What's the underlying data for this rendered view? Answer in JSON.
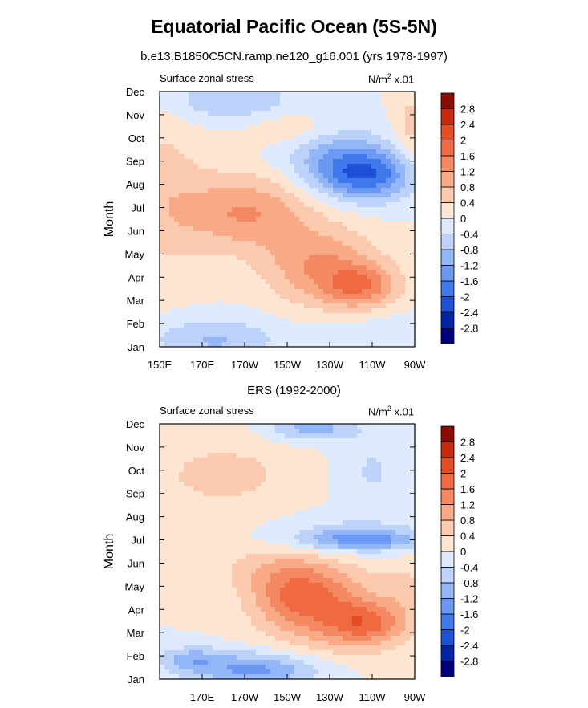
{
  "title": "Equatorial Pacific Ocean (5S-5N)",
  "subtitle": "b.e13.B1850C5CN.ramp.ne120_g16.001 (yrs 1978-1997)",
  "colors": [
    "#00007f",
    "#0424a8",
    "#1f4fd6",
    "#3f78ea",
    "#6a98f2",
    "#93b6f6",
    "#bcd2f9",
    "#dde9fc",
    "#fde5d2",
    "#fbc9ad",
    "#f8a986",
    "#f48862",
    "#ef6a40",
    "#e44c24",
    "#c8280c",
    "#8c0a00"
  ],
  "chart_data": [
    {
      "type": "heatmap",
      "panel_left": "Surface zonal stress",
      "panel_right_main": "N/m",
      "panel_right_sup": "2",
      "panel_right_tail": " x.01",
      "xlabel": "",
      "ylabel": "Month",
      "x_ticklabels": [
        "150E",
        "170E",
        "170W",
        "150W",
        "130W",
        "110W",
        "90W"
      ],
      "y_ticklabels": [
        "Jan",
        "Feb",
        "Mar",
        "Apr",
        "May",
        "Jun",
        "Jul",
        "Aug",
        "Sep",
        "Oct",
        "Nov",
        "Dec"
      ],
      "xlim": [
        150,
        270
      ],
      "colorbar_levels": [
        "-2.8",
        "-2.4",
        "-2",
        "-1.6",
        "-1.2",
        "-0.8",
        "-0.4",
        "0",
        "0.4",
        "0.8",
        "1.2",
        "1.6",
        "2",
        "2.4",
        "2.8"
      ],
      "features": [
        {
          "lon": 150,
          "mon": 7.6,
          "amp": 0.55,
          "slon": 22,
          "smon": 4.0
        },
        {
          "lon": 190,
          "mon": 6.8,
          "amp": 1.2,
          "slon": 30,
          "smon": 1.6
        },
        {
          "lon": 225,
          "mon": 4.5,
          "amp": 1.15,
          "slon": 26,
          "smon": 1.7
        },
        {
          "lon": 245,
          "mon": 3.6,
          "amp": 1.3,
          "slon": 18,
          "smon": 1.0
        },
        {
          "lon": 248,
          "mon": 8.4,
          "amp": -1.75,
          "slon": 22,
          "smon": 1.1
        },
        {
          "lon": 232,
          "mon": 9.2,
          "amp": -0.9,
          "slon": 24,
          "smon": 1.4
        },
        {
          "lon": 182,
          "mon": 11.6,
          "amp": -0.75,
          "slon": 32,
          "smon": 1.0
        },
        {
          "lon": 175,
          "mon": 1.3,
          "amp": -0.85,
          "slon": 30,
          "smon": 1.0
        },
        {
          "lon": 212,
          "mon": 10.4,
          "amp": 0.5,
          "slon": 22,
          "smon": 0.7
        },
        {
          "lon": 268,
          "mon": 10.4,
          "amp": 0.55,
          "slon": 8,
          "smon": 1.8
        },
        {
          "lon": 255,
          "mon": 1.2,
          "amp": -0.4,
          "slon": 30,
          "smon": 1.3
        }
      ]
    },
    {
      "type": "heatmap",
      "panel_left": "Surface zonal stress",
      "panel_right_main": "N/m",
      "panel_right_sup": "2",
      "panel_right_tail": " x.01",
      "xlabel": "ERS (1992-2000)",
      "ylabel": "Month",
      "x_ticklabels": [
        "170E",
        "170W",
        "150W",
        "130W",
        "110W",
        "90W"
      ],
      "y_ticklabels": [
        "Jan",
        "Feb",
        "Mar",
        "Apr",
        "May",
        "Jun",
        "Jul",
        "Aug",
        "Sep",
        "Oct",
        "Nov",
        "Dec"
      ],
      "xlim": [
        150,
        270
      ],
      "colorbar_levels": [
        "-2.8",
        "-2.4",
        "-2",
        "-1.6",
        "-1.2",
        "-0.8",
        "-0.4",
        "0",
        "0.4",
        "0.8",
        "1.2",
        "1.6",
        "2",
        "2.4",
        "2.8"
      ],
      "features": [
        {
          "lon": 195,
          "mon": 1.4,
          "amp": -1.35,
          "slon": 32,
          "smon": 0.75
        },
        {
          "lon": 165,
          "mon": 1.9,
          "amp": -0.8,
          "slon": 14,
          "smon": 0.5
        },
        {
          "lon": 215,
          "mon": 4.6,
          "amp": 1.25,
          "slon": 22,
          "smon": 1.4
        },
        {
          "lon": 248,
          "mon": 3.4,
          "amp": 1.25,
          "slon": 18,
          "smon": 0.9
        },
        {
          "lon": 232,
          "mon": 3.9,
          "amp": 0.9,
          "slon": 30,
          "smon": 2.0
        },
        {
          "lon": 245,
          "mon": 7.0,
          "amp": -1.15,
          "slon": 28,
          "smon": 0.45
        },
        {
          "lon": 240,
          "mon": 7.2,
          "amp": -0.5,
          "slon": 36,
          "smon": 0.9
        },
        {
          "lon": 222,
          "mon": 11.8,
          "amp": -1.0,
          "slon": 20,
          "smon": 0.55
        },
        {
          "lon": 180,
          "mon": 9.8,
          "amp": 0.55,
          "slon": 36,
          "smon": 1.6
        },
        {
          "lon": 200,
          "mon": 5.8,
          "amp": 0.45,
          "slon": 26,
          "smon": 1.0
        },
        {
          "lon": 250,
          "mon": 10.0,
          "amp": -0.45,
          "slon": 16,
          "smon": 1.6
        },
        {
          "lon": 265,
          "mon": 5.0,
          "amp": 0.35,
          "slon": 10,
          "smon": 1.2
        }
      ]
    }
  ]
}
